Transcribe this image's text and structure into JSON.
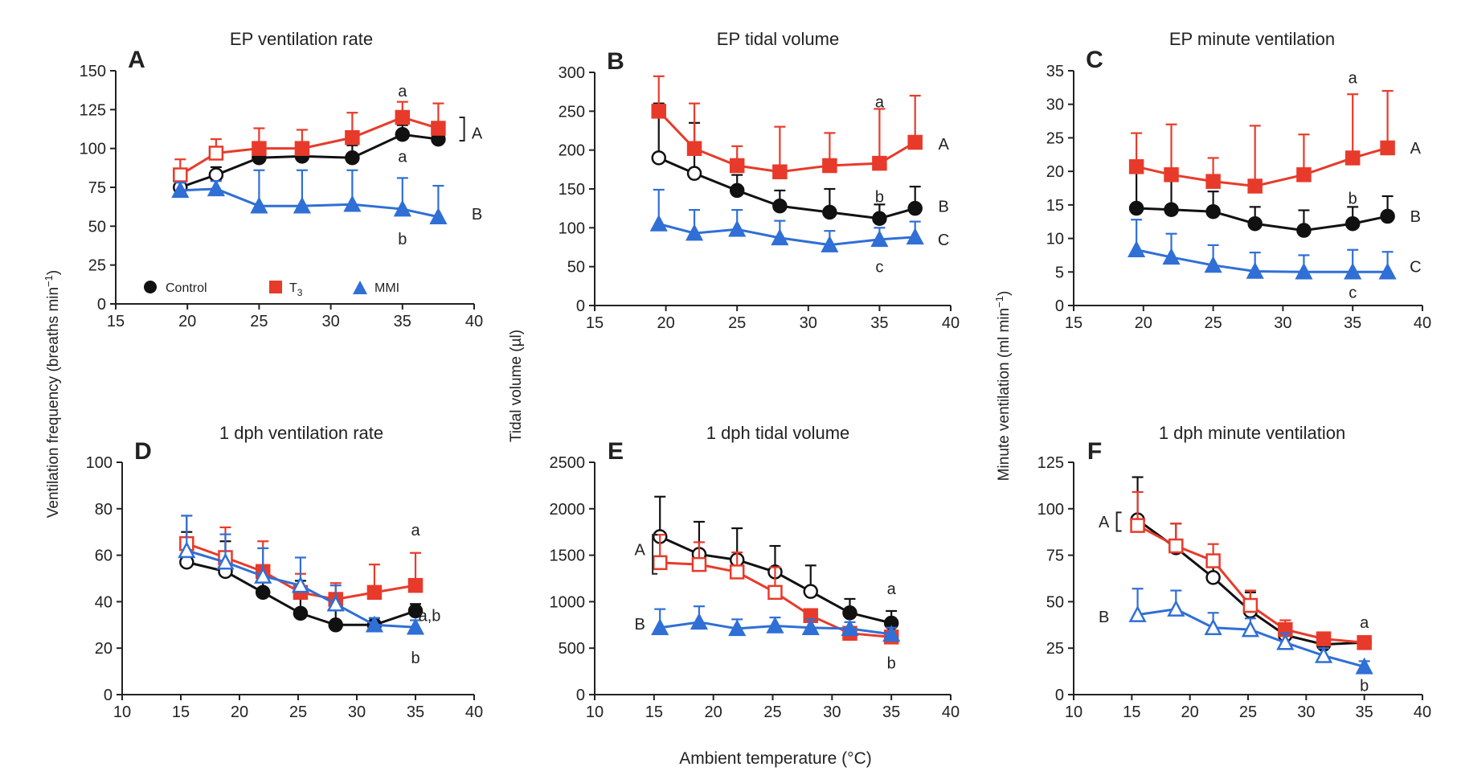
{
  "chart_data": [
    {
      "panel": "A",
      "title": "EP ventilation rate",
      "type": "line",
      "xlim": [
        15,
        40
      ],
      "xticks": [
        15,
        20,
        25,
        30,
        35,
        40
      ],
      "ylim": [
        0,
        150
      ],
      "yticks": [
        0,
        25,
        50,
        75,
        100,
        125,
        150
      ],
      "series": [
        {
          "name": "Control",
          "color": "#111111",
          "marker": "circle",
          "x": [
            19.5,
            22,
            25,
            28,
            31.5,
            35,
            37.5
          ],
          "y": [
            75,
            83,
            94,
            95,
            94,
            109,
            106
          ],
          "err": [
            5,
            5,
            8,
            8,
            8,
            6,
            6
          ],
          "open": [
            true,
            true,
            false,
            false,
            false,
            false,
            false
          ]
        },
        {
          "name": "T3",
          "color": "#e83a2a",
          "marker": "square",
          "x": [
            19.5,
            22,
            25,
            28,
            31.5,
            35,
            37.5
          ],
          "y": [
            83,
            97,
            100,
            100,
            107,
            120,
            113
          ],
          "err": [
            10,
            9,
            13,
            12,
            16,
            10,
            16
          ],
          "open": [
            true,
            true,
            false,
            false,
            false,
            false,
            false
          ]
        },
        {
          "name": "MMI",
          "color": "#2f6fd6",
          "marker": "triangle",
          "x": [
            19.5,
            22,
            25,
            28,
            31.5,
            35,
            37.5
          ],
          "y": [
            73,
            74,
            63,
            63,
            64,
            61,
            56
          ],
          "err": [
            5,
            5,
            23,
            23,
            22,
            20,
            20
          ],
          "open": [
            false,
            false,
            false,
            false,
            false,
            false,
            false
          ]
        }
      ],
      "annotations": [
        {
          "text": "a",
          "x": 35,
          "y": 137
        },
        {
          "text": "a",
          "x": 35,
          "y": 95
        },
        {
          "text": "b",
          "x": 35,
          "y": 42
        },
        {
          "text": "A",
          "x": 40.2,
          "y": 110,
          "bracket": [
            105,
            120
          ]
        },
        {
          "text": "B",
          "x": 40.2,
          "y": 58
        }
      ]
    },
    {
      "panel": "B",
      "title": "EP tidal volume",
      "type": "line",
      "xlim": [
        15,
        40
      ],
      "xticks": [
        15,
        20,
        25,
        30,
        35,
        40
      ],
      "ylim": [
        0,
        300
      ],
      "yticks": [
        0,
        50,
        100,
        150,
        200,
        250,
        300
      ],
      "series": [
        {
          "name": "Control",
          "color": "#111111",
          "marker": "circle",
          "x": [
            19.5,
            22,
            25,
            28,
            31.5,
            35,
            37.5
          ],
          "y": [
            190,
            170,
            148,
            128,
            120,
            112,
            125
          ],
          "err": [
            70,
            65,
            20,
            20,
            30,
            18,
            28
          ],
          "open": [
            true,
            true,
            false,
            false,
            false,
            false,
            false
          ]
        },
        {
          "name": "T3",
          "color": "#e83a2a",
          "marker": "square",
          "x": [
            19.5,
            22,
            25,
            28,
            31.5,
            35,
            37.5
          ],
          "y": [
            250,
            202,
            180,
            172,
            180,
            183,
            210
          ],
          "err": [
            45,
            58,
            25,
            58,
            42,
            70,
            60
          ],
          "open": [
            false,
            false,
            false,
            false,
            false,
            false,
            false
          ]
        },
        {
          "name": "MMI",
          "color": "#2f6fd6",
          "marker": "triangle",
          "x": [
            19.5,
            22,
            25,
            28,
            31.5,
            35,
            37.5
          ],
          "y": [
            105,
            93,
            98,
            87,
            78,
            85,
            88
          ],
          "err": [
            44,
            30,
            25,
            22,
            18,
            15,
            20
          ],
          "open": [
            false,
            false,
            false,
            false,
            false,
            false,
            false
          ]
        }
      ],
      "annotations": [
        {
          "text": "a",
          "x": 35,
          "y": 262
        },
        {
          "text": "b",
          "x": 35,
          "y": 140
        },
        {
          "text": "c",
          "x": 35,
          "y": 50
        },
        {
          "text": "A",
          "x": 39.5,
          "y": 208
        },
        {
          "text": "B",
          "x": 39.5,
          "y": 128
        },
        {
          "text": "C",
          "x": 39.5,
          "y": 85
        }
      ]
    },
    {
      "panel": "C",
      "title": "EP minute ventilation",
      "type": "line",
      "xlim": [
        15,
        40
      ],
      "xticks": [
        15,
        20,
        25,
        30,
        35,
        40
      ],
      "ylim": [
        0,
        35
      ],
      "yticks": [
        0,
        5,
        10,
        15,
        20,
        25,
        30,
        35
      ],
      "series": [
        {
          "name": "Control",
          "color": "#111111",
          "marker": "circle",
          "x": [
            19.5,
            22,
            25,
            28,
            31.5,
            35,
            37.5
          ],
          "y": [
            14.5,
            14.3,
            14,
            12.2,
            11.2,
            12.2,
            13.3
          ],
          "err": [
            6,
            6,
            3,
            2.5,
            3,
            2.5,
            3
          ],
          "open": [
            false,
            false,
            false,
            false,
            false,
            false,
            false
          ]
        },
        {
          "name": "T3",
          "color": "#e83a2a",
          "marker": "square",
          "x": [
            19.5,
            22,
            25,
            28,
            31.5,
            35,
            37.5
          ],
          "y": [
            20.7,
            19.5,
            18.5,
            17.8,
            19.5,
            22,
            23.5
          ],
          "err": [
            5,
            7.5,
            3.5,
            9,
            6,
            9.5,
            8.5
          ],
          "open": [
            false,
            false,
            false,
            false,
            false,
            false,
            false
          ]
        },
        {
          "name": "MMI",
          "color": "#2f6fd6",
          "marker": "triangle",
          "x": [
            19.5,
            22,
            25,
            28,
            31.5,
            35,
            37.5
          ],
          "y": [
            8.3,
            7.2,
            6,
            5.1,
            5,
            5,
            5
          ],
          "err": [
            4.5,
            3.5,
            3,
            2.8,
            2.5,
            3.3,
            3
          ],
          "open": [
            false,
            false,
            false,
            false,
            false,
            false,
            false
          ]
        }
      ],
      "annotations": [
        {
          "text": "a",
          "x": 35,
          "y": 34
        },
        {
          "text": "b",
          "x": 35,
          "y": 16
        },
        {
          "text": "c",
          "x": 35,
          "y": 2
        },
        {
          "text": "A",
          "x": 39.5,
          "y": 23.5
        },
        {
          "text": "B",
          "x": 39.5,
          "y": 13.3
        },
        {
          "text": "C",
          "x": 39.5,
          "y": 5.8
        }
      ]
    },
    {
      "panel": "D",
      "title": "1 dph ventilation rate",
      "type": "line",
      "xlim": [
        10,
        40
      ],
      "xticks": [
        10,
        15,
        20,
        25,
        30,
        35,
        40
      ],
      "ylim": [
        0,
        100
      ],
      "yticks": [
        0,
        20,
        40,
        60,
        80,
        100
      ],
      "series": [
        {
          "name": "Control",
          "color": "#111111",
          "marker": "circle",
          "x": [
            15.5,
            18.8,
            22,
            25.2,
            28.2,
            31.5,
            35
          ],
          "y": [
            57,
            53,
            44,
            35,
            30,
            30,
            36
          ],
          "err": [
            13,
            13,
            11,
            14,
            12,
            3,
            3
          ],
          "open": [
            true,
            true,
            false,
            false,
            false,
            false,
            false
          ]
        },
        {
          "name": "T3",
          "color": "#e83a2a",
          "marker": "square",
          "x": [
            15.5,
            18.8,
            22,
            25.2,
            28.2,
            31.5,
            35
          ],
          "y": [
            65,
            59,
            53,
            44,
            41,
            44,
            47
          ],
          "err": [
            12,
            13,
            13,
            8,
            7,
            12,
            14
          ],
          "open": [
            true,
            true,
            false,
            false,
            false,
            false,
            false
          ]
        },
        {
          "name": "MMI",
          "color": "#2f6fd6",
          "marker": "triangle",
          "x": [
            15.5,
            18.8,
            22,
            25.2,
            28.2,
            31.5,
            35
          ],
          "y": [
            62,
            57,
            51,
            47,
            39,
            30,
            29
          ],
          "err": [
            15,
            12,
            12,
            12,
            8,
            3,
            3
          ],
          "open": [
            true,
            true,
            true,
            true,
            true,
            false,
            false
          ]
        }
      ],
      "annotations": [
        {
          "text": "a",
          "x": 35,
          "y": 71
        },
        {
          "text": "a,b",
          "x": 36.2,
          "y": 34
        },
        {
          "text": "b",
          "x": 35,
          "y": 16
        }
      ]
    },
    {
      "panel": "E",
      "title": "1 dph tidal volume",
      "type": "line",
      "xlim": [
        10,
        40
      ],
      "xticks": [
        10,
        15,
        20,
        25,
        30,
        35,
        40
      ],
      "ylim": [
        0,
        2500
      ],
      "yticks": [
        0,
        500,
        1000,
        1500,
        2000,
        2500
      ],
      "series": [
        {
          "name": "Control",
          "color": "#111111",
          "marker": "circle",
          "x": [
            15.5,
            18.8,
            22,
            25.2,
            28.2,
            31.5,
            35
          ],
          "y": [
            1700,
            1510,
            1450,
            1320,
            1110,
            880,
            770
          ],
          "err": [
            430,
            350,
            340,
            280,
            280,
            150,
            130
          ],
          "open": [
            true,
            true,
            true,
            true,
            true,
            false,
            false
          ]
        },
        {
          "name": "T3",
          "color": "#e83a2a",
          "marker": "square",
          "x": [
            15.5,
            18.8,
            22,
            25.2,
            28.2,
            31.5,
            35
          ],
          "y": [
            1420,
            1400,
            1320,
            1100,
            850,
            660,
            620
          ],
          "err": [
            300,
            240,
            210,
            270,
            60,
            60,
            60
          ],
          "open": [
            true,
            true,
            true,
            true,
            false,
            false,
            false
          ]
        },
        {
          "name": "MMI",
          "color": "#2f6fd6",
          "marker": "triangle",
          "x": [
            15.5,
            18.8,
            22,
            25.2,
            28.2,
            31.5,
            35
          ],
          "y": [
            720,
            780,
            710,
            740,
            720,
            710,
            650
          ],
          "err": [
            200,
            170,
            100,
            90,
            90,
            70,
            70
          ],
          "open": [
            false,
            false,
            false,
            false,
            false,
            false,
            false
          ]
        }
      ],
      "annotations": [
        {
          "text": "a",
          "x": 35,
          "y": 1140
        },
        {
          "text": "b",
          "x": 35,
          "y": 340
        },
        {
          "text": "A",
          "x": 13.8,
          "y": 1560,
          "bracket": [
            1300,
            1720
          ]
        },
        {
          "text": "B",
          "x": 13.8,
          "y": 760
        }
      ]
    },
    {
      "panel": "F",
      "title": "1 dph minute ventilation",
      "type": "line",
      "xlim": [
        10,
        40
      ],
      "xticks": [
        10,
        15,
        20,
        25,
        30,
        35,
        40
      ],
      "ylim": [
        0,
        125
      ],
      "yticks": [
        0,
        25,
        50,
        75,
        100,
        125
      ],
      "series": [
        {
          "name": "Control",
          "color": "#111111",
          "marker": "circle",
          "x": [
            15.5,
            18.8,
            22,
            25.2,
            28.2,
            31.5,
            35
          ],
          "y": [
            94,
            79,
            63,
            45,
            32,
            27,
            28
          ],
          "err": [
            23,
            13,
            12,
            10,
            6,
            4,
            3
          ],
          "open": [
            true,
            true,
            true,
            true,
            true,
            false,
            false
          ]
        },
        {
          "name": "T3",
          "color": "#e83a2a",
          "marker": "square",
          "x": [
            15.5,
            18.8,
            22,
            25.2,
            28.2,
            31.5,
            35
          ],
          "y": [
            91,
            80,
            72,
            48,
            35,
            30,
            28
          ],
          "err": [
            18,
            12,
            9,
            8,
            5,
            3,
            3
          ],
          "open": [
            true,
            true,
            true,
            true,
            false,
            false,
            false
          ]
        },
        {
          "name": "MMI",
          "color": "#2f6fd6",
          "marker": "triangle",
          "x": [
            15.5,
            18.8,
            22,
            25.2,
            28.2,
            31.5,
            35
          ],
          "y": [
            43,
            46,
            36,
            35,
            28,
            21,
            15
          ],
          "err": [
            14,
            10,
            8,
            6,
            5,
            4,
            3
          ],
          "open": [
            true,
            true,
            true,
            true,
            true,
            true,
            false
          ]
        }
      ],
      "annotations": [
        {
          "text": "a",
          "x": 35,
          "y": 39
        },
        {
          "text": "b",
          "x": 35,
          "y": 5
        },
        {
          "text": "A",
          "x": 12.6,
          "y": 93,
          "bracket": [
            88,
            98
          ]
        },
        {
          "text": "B",
          "x": 12.6,
          "y": 42
        }
      ]
    }
  ],
  "legend": {
    "items": [
      {
        "label": "Control",
        "marker": "circle",
        "color": "#111111"
      },
      {
        "label": "T",
        "sub": "3",
        "marker": "square",
        "color": "#e83a2a"
      },
      {
        "label": "MMI",
        "marker": "triangle",
        "color": "#2f6fd6"
      }
    ]
  },
  "axis_labels": {
    "y_left": "Ventilation frequency (breaths min",
    "y_left_sup": "−1",
    "y_left_end": ")",
    "y_mid": "Tidal volume (µl)",
    "y_right": "Minute ventilation (ml min",
    "y_right_sup": "−1",
    "y_right_end": ")",
    "x_bottom": "Ambient temperature (°C)"
  }
}
